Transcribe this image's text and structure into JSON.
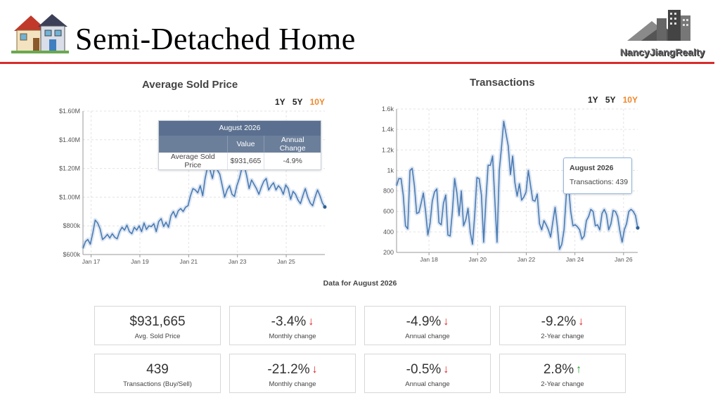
{
  "header": {
    "title": "Semi-Detached Home",
    "logo_text": "NancyJiangRealty",
    "colors": {
      "rule": "#d92b2b"
    }
  },
  "price_chart": {
    "title": "Average Sold Price",
    "range_options": [
      "1Y",
      "5Y",
      "10Y"
    ],
    "active_range": "10Y",
    "tooltip": {
      "month": "August 2026",
      "col_value": "Value",
      "col_change": "Annual Change",
      "row_label": "Average Sold Price",
      "value": "$931,665",
      "change": "-4.9%"
    }
  },
  "tx_chart": {
    "title": "Transactions",
    "range_options": [
      "1Y",
      "5Y",
      "10Y"
    ],
    "active_range": "10Y",
    "tooltip": {
      "month": "August 2026",
      "text": "Transactions: 439"
    }
  },
  "data_for": "Data for August 2026",
  "cards": [
    {
      "value": "$931,665",
      "label": "Avg. Sold Price",
      "dir": ""
    },
    {
      "value": "-3.4%",
      "label": "Monthly change",
      "dir": "down"
    },
    {
      "value": "-4.9%",
      "label": "Annual change",
      "dir": "down"
    },
    {
      "value": "-9.2%",
      "label": "2-Year change",
      "dir": "down"
    },
    {
      "value": "439",
      "label": "Transactions (Buy/Sell)",
      "dir": ""
    },
    {
      "value": "-21.2%",
      "label": "Monthly change",
      "dir": "down"
    },
    {
      "value": "-0.5%",
      "label": "Annual change",
      "dir": "down"
    },
    {
      "value": "2.8%",
      "label": "2-Year change",
      "dir": "up"
    }
  ],
  "chart_data": [
    {
      "type": "line",
      "title": "Average Sold Price",
      "x_ticks": [
        "Jan 17",
        "Jan 19",
        "Jan 21",
        "Jan 23",
        "Jan 25"
      ],
      "y_ticks": [
        "$600k",
        "$800k",
        "$1.00M",
        "$1.20M",
        "$1.40M",
        "$1.60M"
      ],
      "ylim": [
        600000,
        1600000
      ],
      "xlim": [
        "2016-09",
        "2026-08"
      ],
      "line_color": "#4a7bb5",
      "grid": true,
      "series": [
        {
          "values": [
            642000,
            690000,
            705000,
            672000,
            748000,
            840000,
            820000,
            780000,
            705000,
            720000,
            740000,
            715000,
            745000,
            720000,
            710000,
            760000,
            790000,
            770000,
            805000,
            760000,
            745000,
            790000,
            770000,
            800000,
            760000,
            820000,
            775000,
            800000,
            795000,
            815000,
            760000,
            830000,
            850000,
            795000,
            825000,
            790000,
            870000,
            900000,
            860000,
            905000,
            920000,
            900000,
            930000,
            940000,
            1010000,
            1060000,
            1050000,
            1030000,
            1080000,
            1010000,
            1130000,
            1210000,
            1190000,
            1130000,
            1220000,
            1190000,
            1160000,
            1080000,
            1000000,
            1050000,
            1080000,
            1020000,
            1005000,
            1080000,
            1130000,
            1200000,
            1220000,
            1150000,
            1060000,
            1120000,
            1090000,
            1060000,
            1020000,
            1070000,
            1110000,
            1130000,
            1050000,
            1080000,
            1100000,
            1050000,
            1080000,
            1060000,
            1020000,
            1085000,
            1060000,
            985000,
            1040000,
            1020000,
            980000,
            955000,
            1010000,
            1060000,
            1000000,
            960000,
            940000,
            1000000,
            1050000,
            1010000,
            960000,
            931665
          ]
        }
      ]
    },
    {
      "type": "line",
      "title": "Transactions",
      "x_ticks": [
        "Jan 18",
        "Jan 20",
        "Jan 22",
        "Jan 24",
        "Jan 26"
      ],
      "y_ticks": [
        "200",
        "400",
        "600",
        "800",
        "1k",
        "1.2k",
        "1.4k",
        "1.6k"
      ],
      "ylim": [
        200,
        1600
      ],
      "xlim": [
        "2016-09",
        "2026-08"
      ],
      "line_color": "#4a7bb5",
      "grid": true,
      "series": [
        {
          "values": [
            850,
            920,
            920,
            760,
            460,
            430,
            1000,
            1020,
            850,
            580,
            590,
            680,
            780,
            600,
            370,
            480,
            700,
            790,
            820,
            490,
            470,
            680,
            760,
            370,
            360,
            600,
            920,
            780,
            560,
            800,
            460,
            520,
            630,
            400,
            280,
            570,
            930,
            920,
            760,
            300,
            700,
            1050,
            1050,
            1140,
            720,
            300,
            1000,
            1230,
            1480,
            1360,
            1240,
            960,
            1140,
            880,
            750,
            870,
            710,
            740,
            790,
            1000,
            850,
            710,
            700,
            770,
            480,
            420,
            510,
            470,
            420,
            350,
            500,
            640,
            450,
            230,
            280,
            420,
            760,
            850,
            600,
            460,
            470,
            450,
            420,
            330,
            360,
            510,
            550,
            620,
            600,
            460,
            470,
            420,
            580,
            620,
            570,
            420,
            480,
            610,
            600,
            550,
            410,
            300,
            420,
            480,
            600,
            620,
            600,
            560,
            439
          ]
        }
      ]
    }
  ]
}
